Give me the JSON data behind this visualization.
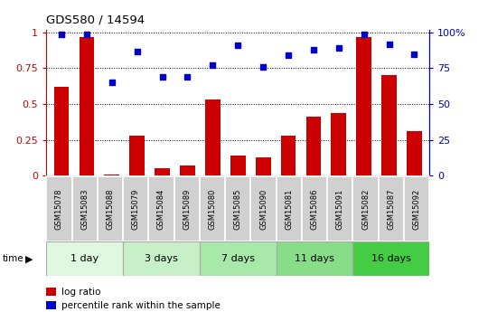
{
  "title": "GDS580 / 14594",
  "samples": [
    "GSM15078",
    "GSM15083",
    "GSM15088",
    "GSM15079",
    "GSM15084",
    "GSM15089",
    "GSM15080",
    "GSM15085",
    "GSM15090",
    "GSM15081",
    "GSM15086",
    "GSM15091",
    "GSM15082",
    "GSM15087",
    "GSM15092"
  ],
  "log_ratio": [
    0.62,
    0.97,
    0.01,
    0.28,
    0.05,
    0.07,
    0.53,
    0.14,
    0.13,
    0.28,
    0.41,
    0.44,
    0.97,
    0.7,
    0.31
  ],
  "percentile_rank": [
    0.99,
    0.99,
    0.65,
    0.87,
    0.69,
    0.69,
    0.77,
    0.91,
    0.76,
    0.84,
    0.88,
    0.89,
    0.99,
    0.92,
    0.85
  ],
  "groups": [
    {
      "label": "1 day",
      "count": 3
    },
    {
      "label": "3 days",
      "count": 3
    },
    {
      "label": "7 days",
      "count": 3
    },
    {
      "label": "11 days",
      "count": 3
    },
    {
      "label": "16 days",
      "count": 3
    }
  ],
  "bar_color": "#cc0000",
  "dot_color": "#0000cc",
  "left_tick_color": "#cc0000",
  "right_tick_color": "#0000bb",
  "yticks_left": [
    0,
    0.25,
    0.5,
    0.75,
    1.0
  ],
  "ytick_labels_left": [
    "0",
    "0.25",
    "0.5",
    "0.75",
    "1"
  ],
  "yticks_right_vals": [
    0,
    25,
    50,
    75,
    100
  ],
  "ytick_labels_right": [
    "0",
    "25",
    "50",
    "75",
    "100%"
  ],
  "header_cell_color": "#d0d0d0",
  "header_border_color": "#ffffff",
  "group_colors": [
    "#e0f8e0",
    "#c8f0c8",
    "#a8e8a8",
    "#88dd88",
    "#44cc44"
  ],
  "group_border_color": "#aaaaaa",
  "legend_red_label": "log ratio",
  "legend_blue_label": "percentile rank within the sample",
  "time_label": "time",
  "dot_size": 22
}
